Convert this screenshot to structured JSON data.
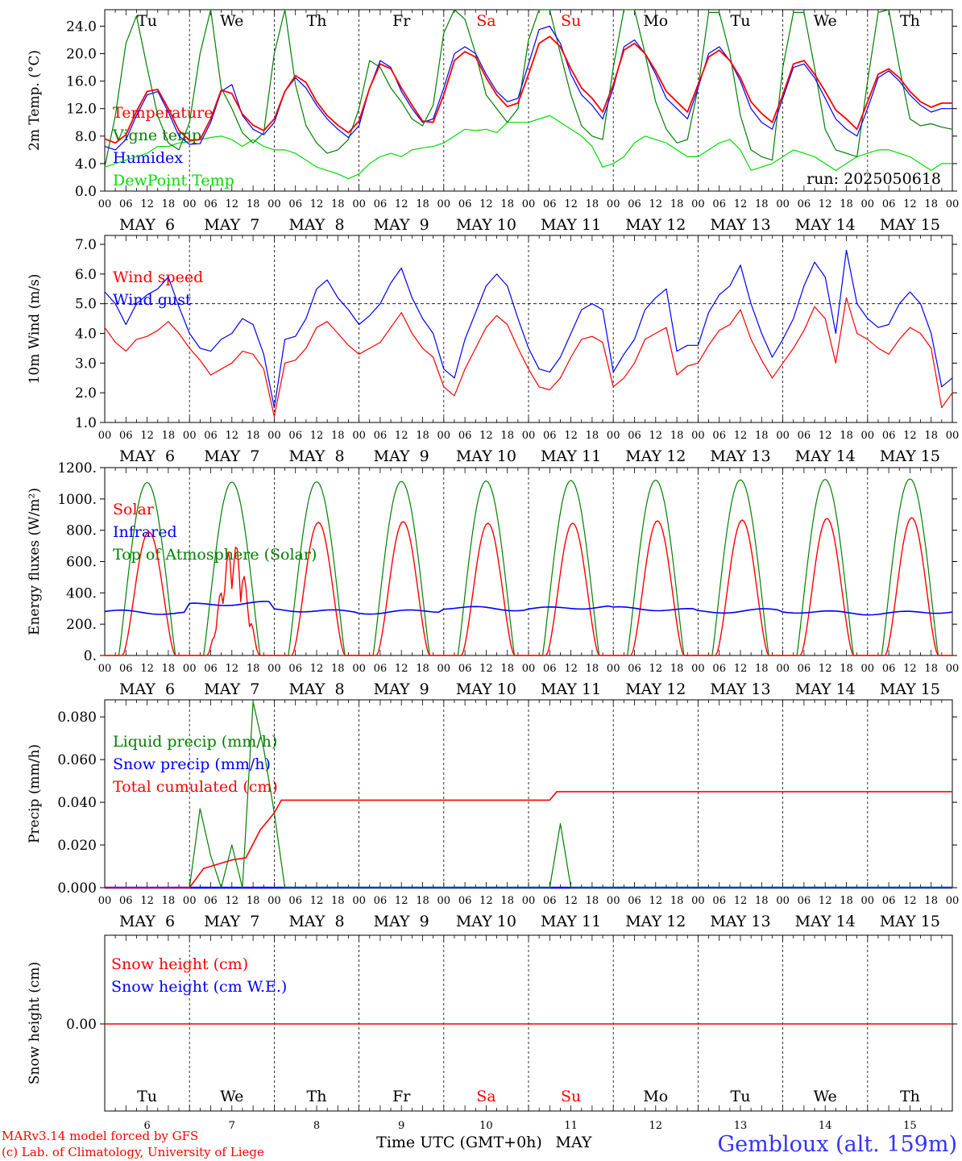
{
  "weekday_labels": [
    "Tu",
    "We",
    "Th",
    "Fr",
    "Sa",
    "Su",
    "Mo",
    "Tu",
    "We",
    "Th"
  ],
  "weekday_colors": [
    "#000000",
    "#000000",
    "#000000",
    "#000000",
    "#ff0000",
    "#ff0000",
    "#000000",
    "#000000",
    "#000000",
    "#000000"
  ],
  "date_labels": [
    "MAY  6",
    "MAY  7",
    "MAY  8",
    "MAY  9",
    "MAY 10",
    "MAY 11",
    "MAY 12",
    "MAY 13",
    "MAY 14",
    "MAY 15"
  ],
  "day_numbers": [
    "6",
    "7",
    "8",
    "9",
    "10",
    "11",
    "12",
    "13",
    "14",
    "15"
  ],
  "hour_ticks": [
    "00",
    "06",
    "12",
    "18"
  ],
  "colors": {
    "temperature": "#ff0000",
    "vigne": "#008000",
    "humidex": "#0000ff",
    "dewpoint": "#00dd00",
    "wind": "#ff0000",
    "gust": "#0000ff",
    "solar": "#ff0000",
    "infrared": "#0000ff",
    "toa": "#008000",
    "liquid": "#008000",
    "snow": "#0000ff",
    "cumul": "#ff0000"
  },
  "footer": {
    "credit1": "MARv3.14 model forced by GFS",
    "credit2": "(c) Lab. of Climatology, University of Liege",
    "axis_caption": "Time UTC (GMT+0h)",
    "month": "MAY",
    "station": "Gembloux (alt. 159m)"
  },
  "chart_data": [
    {
      "type": "line",
      "ylabel": "2m Temp. (°C)",
      "ylim": [
        0,
        26.4
      ],
      "yticks": [
        "0.0",
        "4.0",
        "8.0",
        "12.0",
        "16.0",
        "20.0",
        "24.0"
      ],
      "ytick_values": [
        0,
        4,
        8,
        12,
        16,
        20,
        24
      ],
      "annotation": "run: 2025050618",
      "legend": [
        "Temperature",
        "Vigne temp",
        "Humidex",
        "DewPoint Temp"
      ],
      "x": [
        0,
        3,
        6,
        9,
        12,
        15,
        18,
        21,
        24,
        27,
        30,
        33,
        36,
        39,
        42,
        45,
        48,
        51,
        54,
        57,
        60,
        63,
        66,
        69,
        72,
        75,
        78,
        81,
        84,
        87,
        90,
        93,
        96,
        99,
        102,
        105,
        108,
        111,
        114,
        117,
        120,
        123,
        126,
        129,
        132,
        135,
        138,
        141,
        144,
        147,
        150,
        153,
        156,
        159,
        162,
        165,
        168,
        171,
        174,
        177,
        180,
        183,
        186,
        189,
        192,
        195,
        198,
        201,
        204,
        207,
        210,
        213,
        216,
        219,
        222,
        225,
        228,
        231,
        234,
        237,
        240
      ],
      "series": [
        {
          "name": "Temperature",
          "values": [
            7.6,
            7.0,
            8.2,
            11.6,
            14.5,
            14.8,
            12.0,
            8.8,
            7.4,
            7.5,
            10.5,
            14.7,
            14.2,
            11.2,
            9.6,
            8.8,
            10.5,
            14.5,
            16.8,
            15.8,
            13.0,
            11.0,
            9.6,
            8.5,
            10.2,
            15.0,
            18.5,
            17.8,
            15.0,
            12.5,
            10.2,
            10.0,
            14.0,
            19.0,
            20.3,
            19.5,
            16.5,
            14.0,
            12.3,
            12.8,
            17.0,
            21.5,
            22.5,
            21.0,
            17.8,
            15.0,
            13.5,
            11.5,
            15.5,
            20.5,
            21.5,
            20.0,
            17.5,
            14.5,
            13.0,
            11.5,
            15.5,
            19.5,
            20.5,
            19.0,
            16.5,
            13.0,
            11.3,
            10.0,
            14.0,
            18.5,
            19.0,
            17.0,
            14.5,
            11.8,
            10.5,
            9.0,
            13.0,
            17.0,
            17.8,
            16.5,
            14.5,
            13.0,
            12.2,
            12.8,
            12.8
          ]
        },
        {
          "name": "Vigne temp",
          "values": [
            3.5,
            11.0,
            21.5,
            25.5,
            18.0,
            11.0,
            7.0,
            6.0,
            10.0,
            20.0,
            26.5,
            15.0,
            12.0,
            8.5,
            7.0,
            8.5,
            20.0,
            26.5,
            15.5,
            9.5,
            7.0,
            5.5,
            6.0,
            7.5,
            12.0,
            19.0,
            18.0,
            15.0,
            13.0,
            10.5,
            9.5,
            12.5,
            23.0,
            26.5,
            25.0,
            20.0,
            14.0,
            12.0,
            10.0,
            12.0,
            22.0,
            27.0,
            26.5,
            20.0,
            14.0,
            9.5,
            8.0,
            7.5,
            18.0,
            26.5,
            26.5,
            20.0,
            13.0,
            9.0,
            7.0,
            7.5,
            15.0,
            26.0,
            26.0,
            20.0,
            11.0,
            6.0,
            5.0,
            4.5,
            18.0,
            26.0,
            26.0,
            18.0,
            9.0,
            6.0,
            5.5,
            5.0,
            16.0,
            26.0,
            27.0,
            18.0,
            10.5,
            9.5,
            9.8,
            9.3,
            9.0
          ]
        },
        {
          "name": "Humidex",
          "values": [
            6.5,
            6.0,
            7.5,
            11.0,
            14.0,
            14.5,
            11.5,
            8.0,
            6.8,
            6.9,
            10.0,
            14.5,
            15.5,
            11.0,
            9.0,
            8.2,
            10.0,
            14.5,
            16.5,
            15.0,
            12.5,
            10.5,
            9.0,
            7.8,
            9.5,
            15.0,
            19.0,
            18.0,
            14.5,
            12.0,
            10.0,
            10.5,
            15.0,
            20.0,
            21.0,
            20.0,
            17.0,
            14.5,
            13.0,
            13.5,
            18.5,
            23.5,
            24.0,
            21.5,
            17.0,
            14.0,
            12.5,
            10.5,
            15.0,
            21.0,
            22.0,
            20.0,
            17.0,
            13.5,
            12.0,
            10.5,
            15.0,
            20.0,
            21.0,
            19.0,
            16.0,
            12.0,
            10.0,
            9.0,
            13.5,
            18.0,
            18.5,
            16.5,
            13.5,
            10.5,
            9.0,
            8.0,
            12.0,
            16.5,
            17.5,
            16.0,
            14.0,
            12.5,
            11.5,
            12.0,
            12.0
          ]
        },
        {
          "name": "DewPoint Temp",
          "values": [
            3.5,
            4.0,
            4.5,
            5.0,
            5.5,
            6.5,
            6.5,
            7.0,
            7.2,
            7.5,
            7.8,
            8.0,
            7.5,
            6.5,
            7.5,
            6.5,
            6.0,
            6.0,
            5.5,
            4.5,
            3.5,
            3.0,
            2.5,
            1.8,
            2.5,
            4.0,
            5.0,
            5.5,
            5.0,
            6.0,
            6.3,
            6.5,
            7.0,
            8.0,
            9.0,
            8.8,
            9.0,
            8.5,
            10.0,
            10.0,
            10.0,
            10.5,
            11.0,
            10.0,
            9.0,
            8.0,
            6.5,
            3.5,
            4.0,
            5.0,
            7.0,
            8.0,
            7.5,
            7.0,
            6.0,
            5.0,
            5.0,
            6.0,
            7.0,
            7.5,
            6.0,
            3.0,
            3.5,
            4.0,
            5.0,
            6.0,
            5.5,
            5.0,
            4.0,
            3.0,
            4.0,
            5.0,
            5.5,
            6.0,
            6.0,
            5.5,
            5.0,
            4.0,
            3.0,
            4.0,
            4.0
          ]
        }
      ]
    },
    {
      "type": "line",
      "ylabel": "10m Wind (m/s)",
      "ylim": [
        1.0,
        7.3
      ],
      "yticks": [
        "1.0",
        "2.0",
        "3.0",
        "4.0",
        "5.0",
        "6.0",
        "7.0"
      ],
      "ytick_values": [
        1,
        2,
        3,
        4,
        5,
        6,
        7
      ],
      "reference_line": 5.0,
      "legend": [
        "Wind speed",
        "Wind gust"
      ],
      "x": [
        0,
        3,
        6,
        9,
        12,
        15,
        18,
        21,
        24,
        27,
        30,
        33,
        36,
        39,
        42,
        45,
        48,
        51,
        54,
        57,
        60,
        63,
        66,
        69,
        72,
        75,
        78,
        81,
        84,
        87,
        90,
        93,
        96,
        99,
        102,
        105,
        108,
        111,
        114,
        117,
        120,
        123,
        126,
        129,
        132,
        135,
        138,
        141,
        144,
        147,
        150,
        153,
        156,
        159,
        162,
        165,
        168,
        171,
        174,
        177,
        180,
        183,
        186,
        189,
        192,
        195,
        198,
        201,
        204,
        207,
        210,
        213,
        216,
        219,
        222,
        225,
        228,
        231,
        234,
        237,
        240
      ],
      "series": [
        {
          "name": "Wind speed",
          "values": [
            4.2,
            3.7,
            3.4,
            3.8,
            3.9,
            4.1,
            4.4,
            4.0,
            3.5,
            3.1,
            2.6,
            2.8,
            3.0,
            3.4,
            3.3,
            2.8,
            1.2,
            3.0,
            3.1,
            3.5,
            4.2,
            4.4,
            4.0,
            3.6,
            3.3,
            3.5,
            3.7,
            4.2,
            4.7,
            4.0,
            3.5,
            3.2,
            2.2,
            1.9,
            2.8,
            3.5,
            4.2,
            4.6,
            4.3,
            3.5,
            2.8,
            2.2,
            2.1,
            2.5,
            3.2,
            3.8,
            3.9,
            3.7,
            2.2,
            2.5,
            3.0,
            3.8,
            4.0,
            4.2,
            2.6,
            2.9,
            3.0,
            3.6,
            4.1,
            4.3,
            4.8,
            3.8,
            3.1,
            2.5,
            3.0,
            3.5,
            4.1,
            4.9,
            4.5,
            3.0,
            5.2,
            4.0,
            3.8,
            3.5,
            3.3,
            3.8,
            4.2,
            4.0,
            3.5,
            1.5,
            2.0
          ]
        },
        {
          "name": "Wind gust",
          "values": [
            5.4,
            5.0,
            4.3,
            5.0,
            5.3,
            5.5,
            5.9,
            4.9,
            4.0,
            3.5,
            3.4,
            3.8,
            4.0,
            4.5,
            4.3,
            3.3,
            1.5,
            3.8,
            3.9,
            4.5,
            5.5,
            5.8,
            5.2,
            4.8,
            4.3,
            4.6,
            5.0,
            5.7,
            6.2,
            5.2,
            4.5,
            4.0,
            2.8,
            2.5,
            3.8,
            4.7,
            5.6,
            6.0,
            5.6,
            4.5,
            3.5,
            2.8,
            2.7,
            3.2,
            4.0,
            4.8,
            5.0,
            4.8,
            2.7,
            3.3,
            3.8,
            4.8,
            5.2,
            5.5,
            3.4,
            3.6,
            3.6,
            4.7,
            5.3,
            5.6,
            6.3,
            5.0,
            4.0,
            3.2,
            3.8,
            4.5,
            5.6,
            6.4,
            5.9,
            4.0,
            6.8,
            5.0,
            4.5,
            4.2,
            4.3,
            5.0,
            5.4,
            5.0,
            4.0,
            2.2,
            2.5
          ]
        }
      ]
    },
    {
      "type": "line",
      "ylabel": "Energy fluxes (W/m²)",
      "ylim": [
        0,
        1200
      ],
      "yticks": [
        "0.",
        "200.",
        "400.",
        "600.",
        "800.",
        "1000.",
        "1200."
      ],
      "ytick_values": [
        0,
        200,
        400,
        600,
        800,
        1000,
        1200
      ],
      "legend": [
        "Solar",
        "Infrared",
        "Top of Atmosphere (Solar)"
      ],
      "days": [
        6,
        7,
        8,
        9,
        10,
        11,
        12,
        13,
        14,
        15
      ],
      "toa_peak": [
        1105,
        1108,
        1110,
        1112,
        1115,
        1118,
        1120,
        1122,
        1125,
        1128
      ],
      "solar_peak": [
        790,
        720,
        850,
        855,
        845,
        845,
        860,
        865,
        875,
        880
      ],
      "solar_cloudy_day": 7,
      "infrared_mean": [
        275,
        330,
        285,
        280,
        300,
        305,
        295,
        285,
        275,
        275
      ]
    },
    {
      "type": "line",
      "ylabel": "Precip (mm/h)",
      "ylim": [
        0,
        0.088
      ],
      "yticks": [
        "0.000",
        "0.020",
        "0.040",
        "0.060",
        "0.080"
      ],
      "ytick_values": [
        0,
        0.02,
        0.04,
        0.06,
        0.08
      ],
      "legend": [
        "Liquid precip (mm/h)",
        "Snow precip (mm/h)",
        "Total cumulated (cm)"
      ],
      "x": [
        24,
        27,
        30,
        33,
        36,
        39,
        42,
        45,
        48,
        51,
        126,
        129,
        132
      ],
      "series": [
        {
          "name": "Liquid precip (mm/h)",
          "values": [
            0,
            0.037,
            0.015,
            0,
            0.02,
            0,
            0.087,
            0.065,
            0.035,
            0,
            0,
            0.03,
            0
          ]
        },
        {
          "name": "Total cumulated (cm)",
          "x": [
            0,
            24,
            28,
            32,
            36,
            40,
            44,
            48,
            50,
            126,
            128,
            240
          ],
          "values": [
            0,
            0,
            0.009,
            0.011,
            0.013,
            0.014,
            0.027,
            0.035,
            0.041,
            0.041,
            0.045,
            0.045
          ]
        }
      ]
    },
    {
      "type": "line",
      "ylabel": "Snow height (cm)",
      "yticks": [
        "0.00"
      ],
      "legend": [
        "Snow height (cm)",
        "Snow height (cm W.E.)"
      ],
      "series": [
        {
          "name": "Snow height (cm)",
          "values": [
            0.0,
            0.0
          ]
        }
      ]
    }
  ]
}
